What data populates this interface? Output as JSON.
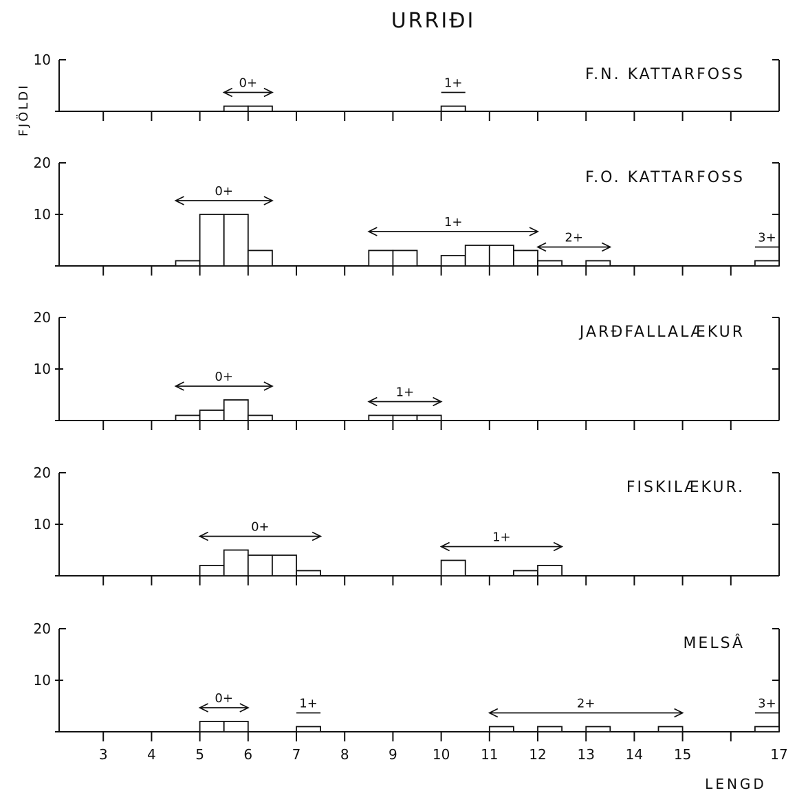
{
  "title": "URRIÐI",
  "ylabel": "FJÖLDI",
  "xlabel": "LENGD",
  "x_ticks": [
    "3",
    "4",
    "5",
    "6",
    "7",
    "8",
    "9",
    "10",
    "11",
    "12",
    "13",
    "14",
    "15",
    "17"
  ],
  "chart_data": {
    "type": "bar",
    "x_unit": "LENGD",
    "xlim": [
      2,
      17
    ],
    "panels": [
      {
        "label": "F.N. KATTARFOSS",
        "ylim": [
          0,
          10
        ],
        "y_ticks": [
          "10"
        ],
        "bars": [
          {
            "x0": 5.5,
            "x1": 6.0,
            "value": 1
          },
          {
            "x0": 6.0,
            "x1": 6.5,
            "value": 1
          },
          {
            "x0": 10.0,
            "x1": 10.5,
            "value": 1
          }
        ],
        "age_groups": [
          {
            "label": "0+",
            "from": 5.5,
            "to": 6.5,
            "arrows": true
          },
          {
            "label": "1+",
            "from": 10.0,
            "to": 10.5,
            "arrows": false
          }
        ]
      },
      {
        "label": "F.O. KATTARFOSS",
        "ylim": [
          0,
          20
        ],
        "y_ticks": [
          "10",
          "20"
        ],
        "bars": [
          {
            "x0": 4.5,
            "x1": 5.0,
            "value": 1
          },
          {
            "x0": 5.0,
            "x1": 5.5,
            "value": 10
          },
          {
            "x0": 5.5,
            "x1": 6.0,
            "value": 10
          },
          {
            "x0": 6.0,
            "x1": 6.5,
            "value": 3
          },
          {
            "x0": 8.5,
            "x1": 9.0,
            "value": 3
          },
          {
            "x0": 9.0,
            "x1": 9.5,
            "value": 3
          },
          {
            "x0": 10.0,
            "x1": 10.5,
            "value": 2
          },
          {
            "x0": 10.5,
            "x1": 11.0,
            "value": 4
          },
          {
            "x0": 11.0,
            "x1": 11.5,
            "value": 4
          },
          {
            "x0": 11.5,
            "x1": 12.0,
            "value": 3
          },
          {
            "x0": 12.0,
            "x1": 12.5,
            "value": 1
          },
          {
            "x0": 13.0,
            "x1": 13.5,
            "value": 1
          },
          {
            "x0": 16.5,
            "x1": 17.0,
            "value": 1
          }
        ],
        "age_groups": [
          {
            "label": "0+",
            "from": 4.5,
            "to": 6.5,
            "arrows": true
          },
          {
            "label": "1+",
            "from": 8.5,
            "to": 12.0,
            "arrows": true
          },
          {
            "label": "2+",
            "from": 12.0,
            "to": 13.5,
            "arrows": true
          },
          {
            "label": "3+",
            "from": 16.5,
            "to": 17.0,
            "arrows": false
          }
        ]
      },
      {
        "label": "JARÐFALLALÆKUR",
        "ylim": [
          0,
          20
        ],
        "y_ticks": [
          "10",
          "20"
        ],
        "bars": [
          {
            "x0": 4.5,
            "x1": 5.0,
            "value": 1
          },
          {
            "x0": 5.0,
            "x1": 5.5,
            "value": 2
          },
          {
            "x0": 5.5,
            "x1": 6.0,
            "value": 4
          },
          {
            "x0": 6.0,
            "x1": 6.5,
            "value": 1
          },
          {
            "x0": 8.5,
            "x1": 9.0,
            "value": 1
          },
          {
            "x0": 9.0,
            "x1": 9.5,
            "value": 1
          },
          {
            "x0": 9.5,
            "x1": 10.0,
            "value": 1
          }
        ],
        "age_groups": [
          {
            "label": "0+",
            "from": 4.5,
            "to": 6.5,
            "arrows": true
          },
          {
            "label": "1+",
            "from": 8.5,
            "to": 10.0,
            "arrows": true
          }
        ]
      },
      {
        "label": "FISKILÆKUR.",
        "ylim": [
          0,
          20
        ],
        "y_ticks": [
          "10",
          "20"
        ],
        "bars": [
          {
            "x0": 5.0,
            "x1": 5.5,
            "value": 2
          },
          {
            "x0": 5.5,
            "x1": 6.0,
            "value": 5
          },
          {
            "x0": 6.0,
            "x1": 6.5,
            "value": 4
          },
          {
            "x0": 6.5,
            "x1": 7.0,
            "value": 4
          },
          {
            "x0": 7.0,
            "x1": 7.5,
            "value": 1
          },
          {
            "x0": 10.0,
            "x1": 10.5,
            "value": 3
          },
          {
            "x0": 11.5,
            "x1": 12.0,
            "value": 1
          },
          {
            "x0": 12.0,
            "x1": 12.5,
            "value": 2
          }
        ],
        "age_groups": [
          {
            "label": "0+",
            "from": 5.0,
            "to": 7.5,
            "arrows": true
          },
          {
            "label": "1+",
            "from": 10.0,
            "to": 12.5,
            "arrows": true
          }
        ]
      },
      {
        "label": "MELSÂ",
        "ylim": [
          0,
          20
        ],
        "y_ticks": [
          "10",
          "20"
        ],
        "bars": [
          {
            "x0": 5.0,
            "x1": 5.5,
            "value": 2
          },
          {
            "x0": 5.5,
            "x1": 6.0,
            "value": 2
          },
          {
            "x0": 7.0,
            "x1": 7.5,
            "value": 1
          },
          {
            "x0": 11.0,
            "x1": 11.5,
            "value": 1
          },
          {
            "x0": 12.0,
            "x1": 12.5,
            "value": 1
          },
          {
            "x0": 13.0,
            "x1": 13.5,
            "value": 1
          },
          {
            "x0": 14.5,
            "x1": 15.0,
            "value": 1
          },
          {
            "x0": 16.5,
            "x1": 17.0,
            "value": 1
          }
        ],
        "age_groups": [
          {
            "label": "0+",
            "from": 5.0,
            "to": 6.0,
            "arrows": true
          },
          {
            "label": "1+",
            "from": 7.0,
            "to": 7.5,
            "arrows": false
          },
          {
            "label": "2+",
            "from": 11.0,
            "to": 15.0,
            "arrows": true
          },
          {
            "label": "3+",
            "from": 16.5,
            "to": 17.0,
            "arrows": false
          }
        ]
      }
    ]
  }
}
